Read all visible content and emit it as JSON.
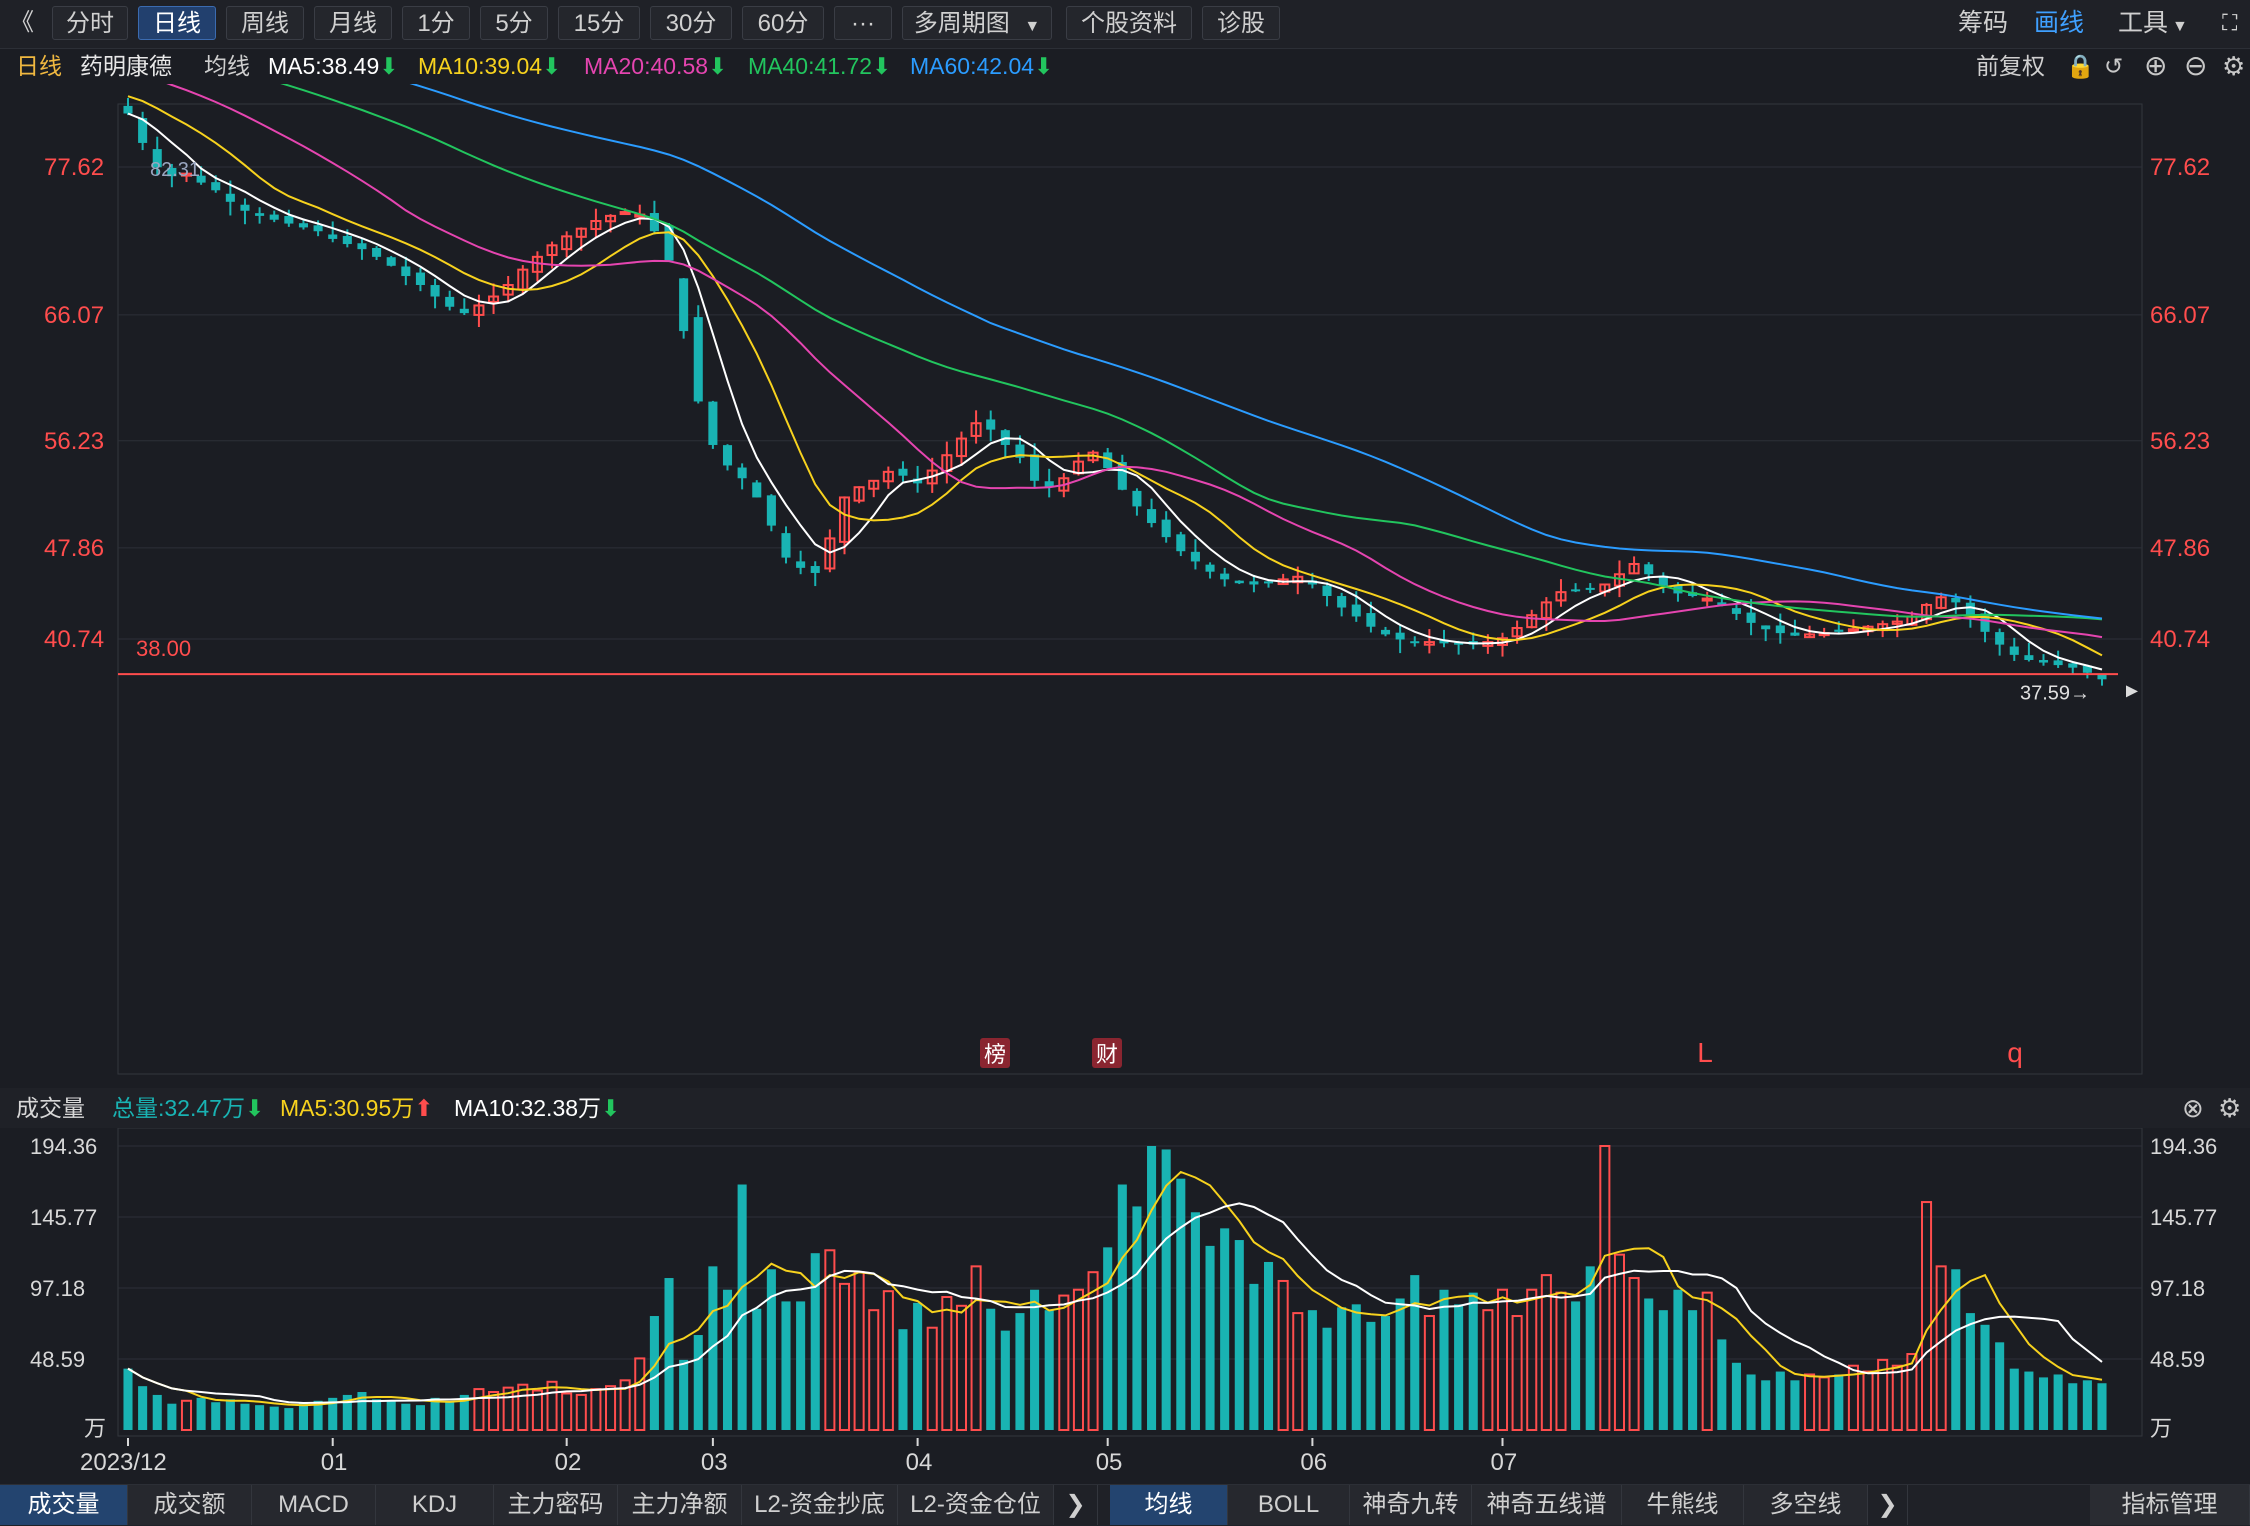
{
  "toolbar": {
    "back_glyph": "《",
    "periods": [
      "分时",
      "日线",
      "周线",
      "月线",
      "1分",
      "5分",
      "15分",
      "30分",
      "60分",
      "···"
    ],
    "active_period": "日线",
    "multi_period": "多周期图",
    "stock_info": "个股资料",
    "diagnose": "诊股",
    "right": [
      "筹码",
      "画线",
      "工具"
    ],
    "right_active": "画线"
  },
  "legend": {
    "period": "日线",
    "stock_name": "药明康德",
    "avg_label": "均线",
    "ma5": "MA5:38.49",
    "ma10": "MA10:39.04",
    "ma20": "MA20:40.58",
    "ma40": "MA40:41.72",
    "ma60": "MA60:42.04",
    "adjust": "前复权"
  },
  "colors": {
    "up": "#ff4d4d",
    "down": "#19b3b3",
    "ma5": "#ffffff",
    "ma10": "#f7d21e",
    "ma20": "#e545b0",
    "ma40": "#22c55e",
    "ma60": "#2b9cff",
    "axis_text": "#ff4d4d"
  },
  "price_axis": {
    "ticks": [
      "77.62",
      "66.07",
      "56.23",
      "47.86",
      "40.74"
    ],
    "tick_values": [
      77.62,
      66.07,
      56.23,
      47.86,
      40.74
    ],
    "high_label": "82.31",
    "support_label": "38.00",
    "support_value": 38.0,
    "last_label": "37.59→",
    "markers": [
      "榜",
      "财",
      "L",
      "q"
    ]
  },
  "volume": {
    "title": "成交量",
    "total": "总量:32.47万",
    "ma5": "MA5:30.95万",
    "ma10": "MA10:32.38万",
    "ticks": [
      "194.36",
      "145.77",
      "97.18",
      "48.59"
    ],
    "tick_values": [
      194.36,
      145.77,
      97.18,
      48.59
    ],
    "unit": "万"
  },
  "x_axis": {
    "labels": [
      "2023/12",
      "01",
      "02",
      "03",
      "04",
      "05",
      "06",
      "07"
    ]
  },
  "bottom_tabs_left": [
    "成交量",
    "成交额",
    "MACD",
    "KDJ",
    "主力密码",
    "主力净额",
    "L2-资金抄底",
    "L2-资金仓位"
  ],
  "bottom_tabs_left_active": "成交量",
  "bottom_tabs_right": [
    "均线",
    "BOLL",
    "神奇九转",
    "神奇五线谱",
    "牛熊线",
    "多空线"
  ],
  "bottom_tabs_right_active": "均线",
  "indicator_manage": "指标管理",
  "chart_data": {
    "type": "candlestick",
    "title": "药明康德 日线",
    "ylim": [
      35.5,
      84.5
    ],
    "volume_ylim": [
      0,
      200
    ],
    "x_labels": [
      "2023/12",
      "01",
      "02",
      "03",
      "04",
      "05",
      "06",
      "07"
    ],
    "anchor_closes": [
      81.8,
      79.5,
      77.6,
      76.9,
      77.1,
      76.4,
      75.8,
      74.9,
      74.2,
      73.8,
      73.5,
      73.2,
      72.9,
      72.6,
      72.0,
      71.6,
      71.2,
      70.6,
      69.9,
      69.1,
      68.4,
      67.5,
      66.7,
      66.2,
      66.8,
      67.5,
      68.4,
      69.6,
      70.6,
      71.5,
      72.2,
      72.8,
      73.4,
      73.8,
      74.1,
      73.9,
      72.6,
      70.3,
      64.8,
      59.3,
      55.9,
      54.3,
      53.3,
      51.8,
      49.6,
      47.1,
      46.3,
      45.9,
      48.6,
      51.8,
      52.6,
      53.1,
      53.8,
      53.5,
      52.9,
      53.9,
      55.1,
      56.4,
      57.6,
      57.1,
      55.9,
      54.9,
      53.1,
      52.6,
      53.3,
      54.6,
      55.3,
      54.1,
      52.4,
      51.1,
      49.8,
      48.7,
      47.6,
      46.8,
      46.0,
      45.4,
      45.1,
      45.0,
      45.2,
      45.4,
      45.6,
      45.0,
      44.1,
      43.2,
      42.5,
      41.7,
      41.1,
      40.7,
      40.5,
      40.5,
      40.4,
      40.3,
      40.3,
      40.5,
      40.8,
      41.6,
      42.6,
      43.6,
      44.4,
      44.5,
      44.6,
      45.0,
      45.8,
      46.6,
      45.8,
      44.9,
      44.3,
      44.1,
      43.9,
      43.4,
      42.7,
      42.0,
      41.5,
      41.2,
      41.0,
      41.1,
      41.2,
      41.3,
      41.5,
      41.7,
      41.9,
      42.1,
      42.5,
      43.4,
      44.0,
      43.6,
      42.6,
      41.3,
      40.3,
      39.5,
      39.1,
      38.9,
      38.7,
      38.5,
      38.1,
      37.59
    ],
    "ma_last": {
      "MA5": 38.49,
      "MA10": 39.04,
      "MA20": 40.58,
      "MA40": 41.72,
      "MA60": 42.04
    },
    "volume_last": {
      "total": 32.47,
      "MA5": 30.95,
      "MA10": 32.38
    },
    "volume_profile": [
      42,
      30,
      24,
      18,
      20,
      22,
      19,
      21,
      18,
      17,
      16,
      15,
      19,
      20,
      22,
      24,
      26,
      21,
      20,
      18,
      17,
      22,
      19,
      24,
      28,
      26,
      29,
      31,
      27,
      33,
      25,
      24,
      28,
      30,
      34,
      49,
      78,
      104,
      48,
      65,
      112,
      96,
      168,
      83,
      110,
      88,
      88,
      121,
      123,
      100,
      108,
      82,
      95,
      69,
      87,
      70,
      91,
      85,
      112,
      83,
      68,
      80,
      96,
      82,
      92,
      96,
      108,
      125,
      168,
      153,
      198,
      192,
      172,
      149,
      126,
      138,
      130,
      100,
      115,
      102,
      80,
      82,
      70,
      84,
      86,
      74,
      78,
      90,
      106,
      78,
      96,
      86,
      94,
      82,
      96,
      78,
      96,
      106,
      94,
      88,
      112,
      196,
      120,
      104,
      90,
      82,
      96,
      82,
      94,
      62,
      46,
      38,
      34,
      40,
      34,
      38,
      36,
      38,
      44,
      40,
      48,
      44,
      52,
      156,
      112,
      110,
      80,
      72,
      60,
      42,
      40,
      36,
      38,
      32,
      34,
      32
    ]
  }
}
